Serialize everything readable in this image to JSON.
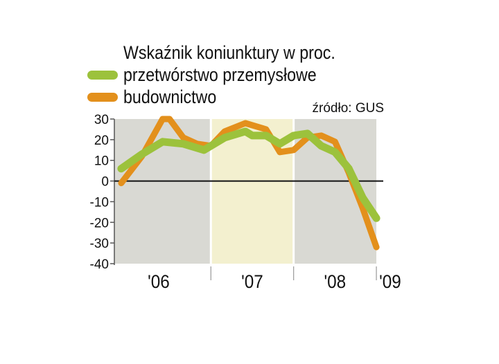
{
  "chart_data": {
    "type": "line",
    "title": "Wskaźnik koniunktury w proc.",
    "source": "źródło: GUS",
    "ylim": [
      -40,
      30
    ],
    "y_ticks": [
      "30",
      "20",
      "10",
      "0",
      "-10",
      "-20",
      "-30",
      "-40"
    ],
    "x_labels": [
      "'06",
      "'07",
      "'08",
      "'09"
    ],
    "x_range": [
      "2005-11",
      "2009-02"
    ],
    "zero_line": true,
    "legend_position": "top-left",
    "shaded_periods": [
      {
        "from": "2005-11",
        "to": "2007-01",
        "color": "#d9d9d3"
      },
      {
        "from": "2007-01",
        "to": "2008-01",
        "color": "#f3f0cf"
      },
      {
        "from": "2008-01",
        "to": "2009-01",
        "color": "#d9d9d3"
      }
    ],
    "series": [
      {
        "name": "przetwórstwo przemysłowe",
        "color": "#9cc23c",
        "points": [
          [
            "2005-12",
            6
          ],
          [
            "2006-03",
            13
          ],
          [
            "2006-06",
            19
          ],
          [
            "2006-09",
            18
          ],
          [
            "2006-12",
            15
          ],
          [
            "2007-03",
            21
          ],
          [
            "2007-06",
            24
          ],
          [
            "2007-07",
            22
          ],
          [
            "2007-09",
            22
          ],
          [
            "2007-11",
            18
          ],
          [
            "2008-01",
            22
          ],
          [
            "2008-03",
            23
          ],
          [
            "2008-05",
            17
          ],
          [
            "2008-07",
            14
          ],
          [
            "2008-09",
            6
          ],
          [
            "2008-11",
            -8
          ],
          [
            "2009-01",
            -18
          ]
        ]
      },
      {
        "name": "budownictwo",
        "color": "#e3901c",
        "points": [
          [
            "2005-12",
            -1
          ],
          [
            "2006-03",
            12
          ],
          [
            "2006-06",
            30
          ],
          [
            "2006-07",
            30
          ],
          [
            "2006-09",
            21
          ],
          [
            "2006-11",
            18
          ],
          [
            "2007-01",
            17
          ],
          [
            "2007-03",
            24
          ],
          [
            "2007-06",
            28
          ],
          [
            "2007-09",
            25
          ],
          [
            "2007-11",
            14
          ],
          [
            "2008-01",
            15
          ],
          [
            "2008-03",
            21
          ],
          [
            "2008-05",
            22
          ],
          [
            "2008-07",
            19
          ],
          [
            "2008-09",
            4
          ],
          [
            "2008-11",
            -13
          ],
          [
            "2009-01",
            -32
          ]
        ]
      }
    ]
  }
}
